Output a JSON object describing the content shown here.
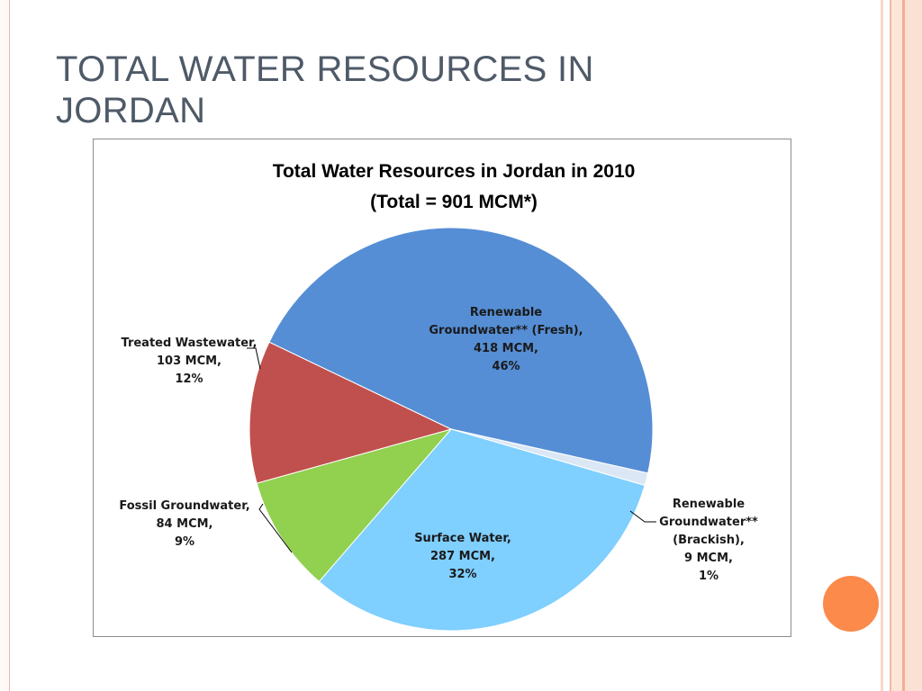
{
  "slide": {
    "title_line1": "TOTAL WATER RESOURCES IN",
    "title_line2": "JORDAN"
  },
  "colors": {
    "title_text": "#4f5a68",
    "accent_circle": "#fb8a4b",
    "border_stripe": "#f3ae92"
  },
  "chart_data": {
    "type": "pie",
    "title": "Total Water Resources in Jordan in 2010",
    "subtitle": "(Total = 901 MCM*)",
    "unit": "MCM",
    "slices": [
      {
        "label_lines": [
          "Renewable",
          "Groundwater** (Fresh),",
          "418 MCM,",
          "46%"
        ],
        "value": 418,
        "percent": 46,
        "color": "#558ed5"
      },
      {
        "label_lines": [
          "Renewable",
          "Groundwater**",
          "(Brackish),",
          "9 MCM,",
          "1%"
        ],
        "value": 9,
        "percent": 1,
        "color": "#dbe7f5"
      },
      {
        "label_lines": [
          "Surface Water,",
          "287 MCM,",
          "32%"
        ],
        "value": 287,
        "percent": 32,
        "color": "#7fcfff"
      },
      {
        "label_lines": [
          "Fossil Groundwater,",
          "84 MCM,",
          "9%"
        ],
        "value": 84,
        "percent": 9,
        "color": "#92d050"
      },
      {
        "label_lines": [
          "Treated Wastewater,",
          "103 MCM,",
          "12%"
        ],
        "value": 103,
        "percent": 12,
        "color": "#c0504d"
      }
    ],
    "legend": "none"
  }
}
